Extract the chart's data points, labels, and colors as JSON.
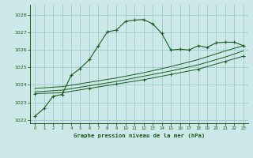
{
  "title": "Graphe pression niveau de la mer (hPa)",
  "xlim": [
    -0.5,
    23.5
  ],
  "ylim": [
    1021.8,
    1028.6
  ],
  "yticks": [
    1022,
    1023,
    1024,
    1025,
    1026,
    1027,
    1028
  ],
  "xticks": [
    0,
    1,
    2,
    3,
    4,
    5,
    6,
    7,
    8,
    9,
    10,
    11,
    12,
    13,
    14,
    15,
    16,
    17,
    18,
    19,
    20,
    21,
    22,
    23
  ],
  "background_color": "#cce8e8",
  "grid_color": "#99cccc",
  "line_color": "#1a5c1a",
  "series1_x": [
    0,
    1,
    2,
    3,
    4,
    5,
    6,
    7,
    8,
    9,
    10,
    11,
    12,
    13,
    14,
    15,
    16,
    17,
    18,
    19,
    20,
    21,
    22,
    23
  ],
  "series1_y": [
    1022.2,
    1022.65,
    1023.35,
    1023.45,
    1024.55,
    1024.95,
    1025.45,
    1026.25,
    1027.05,
    1027.15,
    1027.65,
    1027.72,
    1027.75,
    1027.5,
    1026.95,
    1026.0,
    1026.05,
    1026.0,
    1026.25,
    1026.15,
    1026.42,
    1026.45,
    1026.45,
    1026.25
  ],
  "series2_x": [
    0,
    3,
    6,
    9,
    12,
    15,
    18,
    21,
    23
  ],
  "series2_y": [
    1023.5,
    1023.55,
    1023.8,
    1024.05,
    1024.3,
    1024.6,
    1024.9,
    1025.35,
    1025.65
  ],
  "series3_x": [
    0,
    3,
    6,
    9,
    12,
    15,
    18,
    21,
    23
  ],
  "series3_y": [
    1023.6,
    1023.7,
    1023.95,
    1024.2,
    1024.5,
    1024.8,
    1025.15,
    1025.6,
    1025.95
  ],
  "series4_x": [
    0,
    3,
    6,
    9,
    12,
    15,
    18,
    21,
    23
  ],
  "series4_y": [
    1023.8,
    1023.9,
    1024.15,
    1024.4,
    1024.7,
    1025.05,
    1025.45,
    1025.95,
    1026.25
  ]
}
